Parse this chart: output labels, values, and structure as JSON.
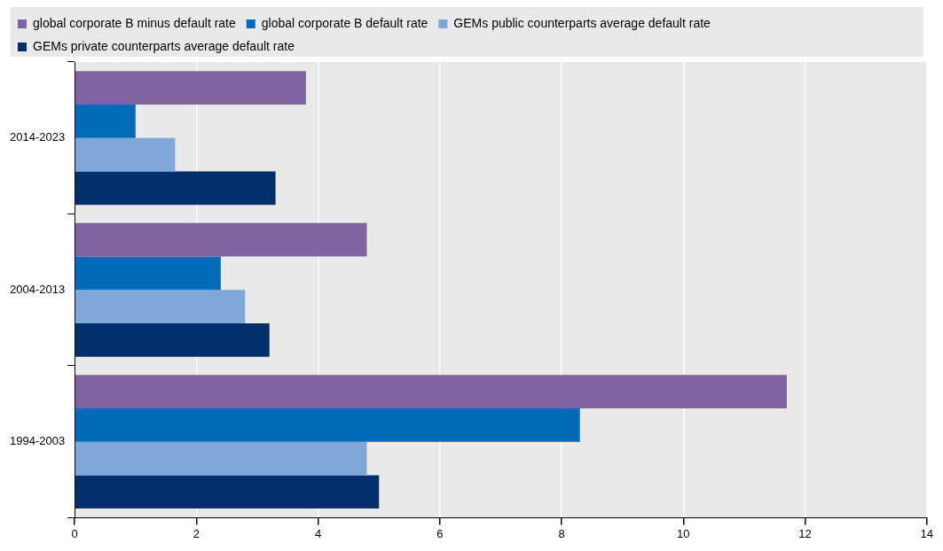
{
  "chart_data": {
    "type": "bar",
    "orientation": "horizontal",
    "categories": [
      "2014-2023",
      "2004-2013",
      "1994-2003"
    ],
    "series": [
      {
        "name": "global corporate B minus default rate",
        "color": "#8064a2",
        "values": [
          3.8,
          4.8,
          11.7
        ]
      },
      {
        "name": "global corporate B default rate",
        "color": "#006bb6",
        "values": [
          1.0,
          2.4,
          8.3
        ]
      },
      {
        "name": "GEMs public counterparts average default rate",
        "color": "#7fa8d9",
        "values": [
          1.65,
          2.8,
          4.8
        ]
      },
      {
        "name": "GEMs private counterparts average default rate",
        "color": "#002f6c",
        "values": [
          3.3,
          3.2,
          5.0
        ]
      }
    ],
    "xlim": [
      0,
      14
    ],
    "xticks": [
      0,
      2,
      4,
      6,
      8,
      10,
      12,
      14
    ],
    "grid": "x",
    "legend": "top"
  }
}
